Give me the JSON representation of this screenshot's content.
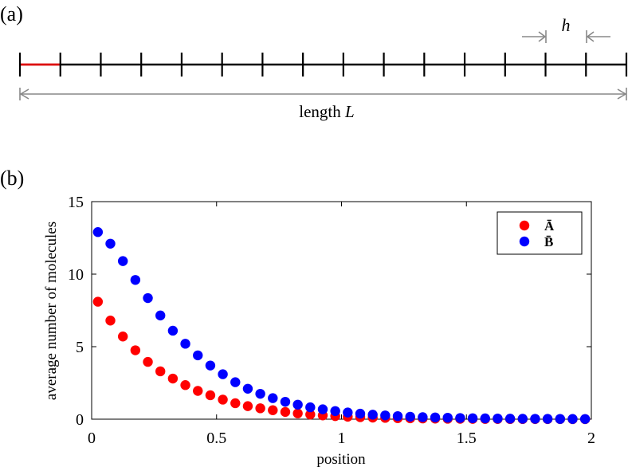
{
  "panel_a": {
    "label": "(a)",
    "spacing_label": "h",
    "length_label_prefix": "length ",
    "length_label_var": "L",
    "segment_count": 15,
    "segment_color": "#000000",
    "highlight_color": "#dd0000",
    "arrow_color": "#888888"
  },
  "panel_b": {
    "label": "(b)"
  },
  "chart_data": {
    "type": "scatter",
    "title": "",
    "xlabel": "position",
    "ylabel": "average number of molecules",
    "xlim": [
      0,
      2
    ],
    "ylim": [
      0,
      15
    ],
    "xticks": [
      0,
      0.5,
      1,
      1.5,
      2
    ],
    "xtick_labels": [
      "0",
      "0.5",
      "1",
      "1.5",
      "2"
    ],
    "yticks": [
      0,
      5,
      10,
      15
    ],
    "ytick_labels": [
      "0",
      "5",
      "10",
      "15"
    ],
    "legend_position": "top-right",
    "x": [
      0.025,
      0.075,
      0.125,
      0.175,
      0.225,
      0.275,
      0.325,
      0.375,
      0.425,
      0.475,
      0.525,
      0.575,
      0.625,
      0.675,
      0.725,
      0.775,
      0.825,
      0.875,
      0.925,
      0.975,
      1.025,
      1.075,
      1.125,
      1.175,
      1.225,
      1.275,
      1.325,
      1.375,
      1.425,
      1.475,
      1.525,
      1.575,
      1.625,
      1.675,
      1.725,
      1.775,
      1.825,
      1.875,
      1.925,
      1.975
    ],
    "series": [
      {
        "name": "Ā",
        "color": "#ff0000",
        "values": [
          8.1,
          6.8,
          5.7,
          4.75,
          3.95,
          3.3,
          2.8,
          2.35,
          1.95,
          1.65,
          1.35,
          1.1,
          0.9,
          0.75,
          0.62,
          0.5,
          0.4,
          0.32,
          0.26,
          0.21,
          0.17,
          0.14,
          0.11,
          0.09,
          0.07,
          0.06,
          0.05,
          0.04,
          0.03,
          0.025,
          0.02,
          0.016,
          0.013,
          0.01,
          0.008,
          0.006,
          0.005,
          0.004,
          0.003,
          0.002
        ]
      },
      {
        "name": "B̄",
        "color": "#0000ff",
        "values": [
          12.9,
          12.1,
          10.9,
          9.6,
          8.35,
          7.15,
          6.1,
          5.2,
          4.4,
          3.7,
          3.1,
          2.55,
          2.1,
          1.75,
          1.45,
          1.2,
          1.0,
          0.82,
          0.68,
          0.56,
          0.46,
          0.38,
          0.31,
          0.26,
          0.21,
          0.17,
          0.14,
          0.12,
          0.1,
          0.08,
          0.065,
          0.055,
          0.045,
          0.037,
          0.03,
          0.025,
          0.02,
          0.017,
          0.014,
          0.012
        ]
      }
    ]
  }
}
